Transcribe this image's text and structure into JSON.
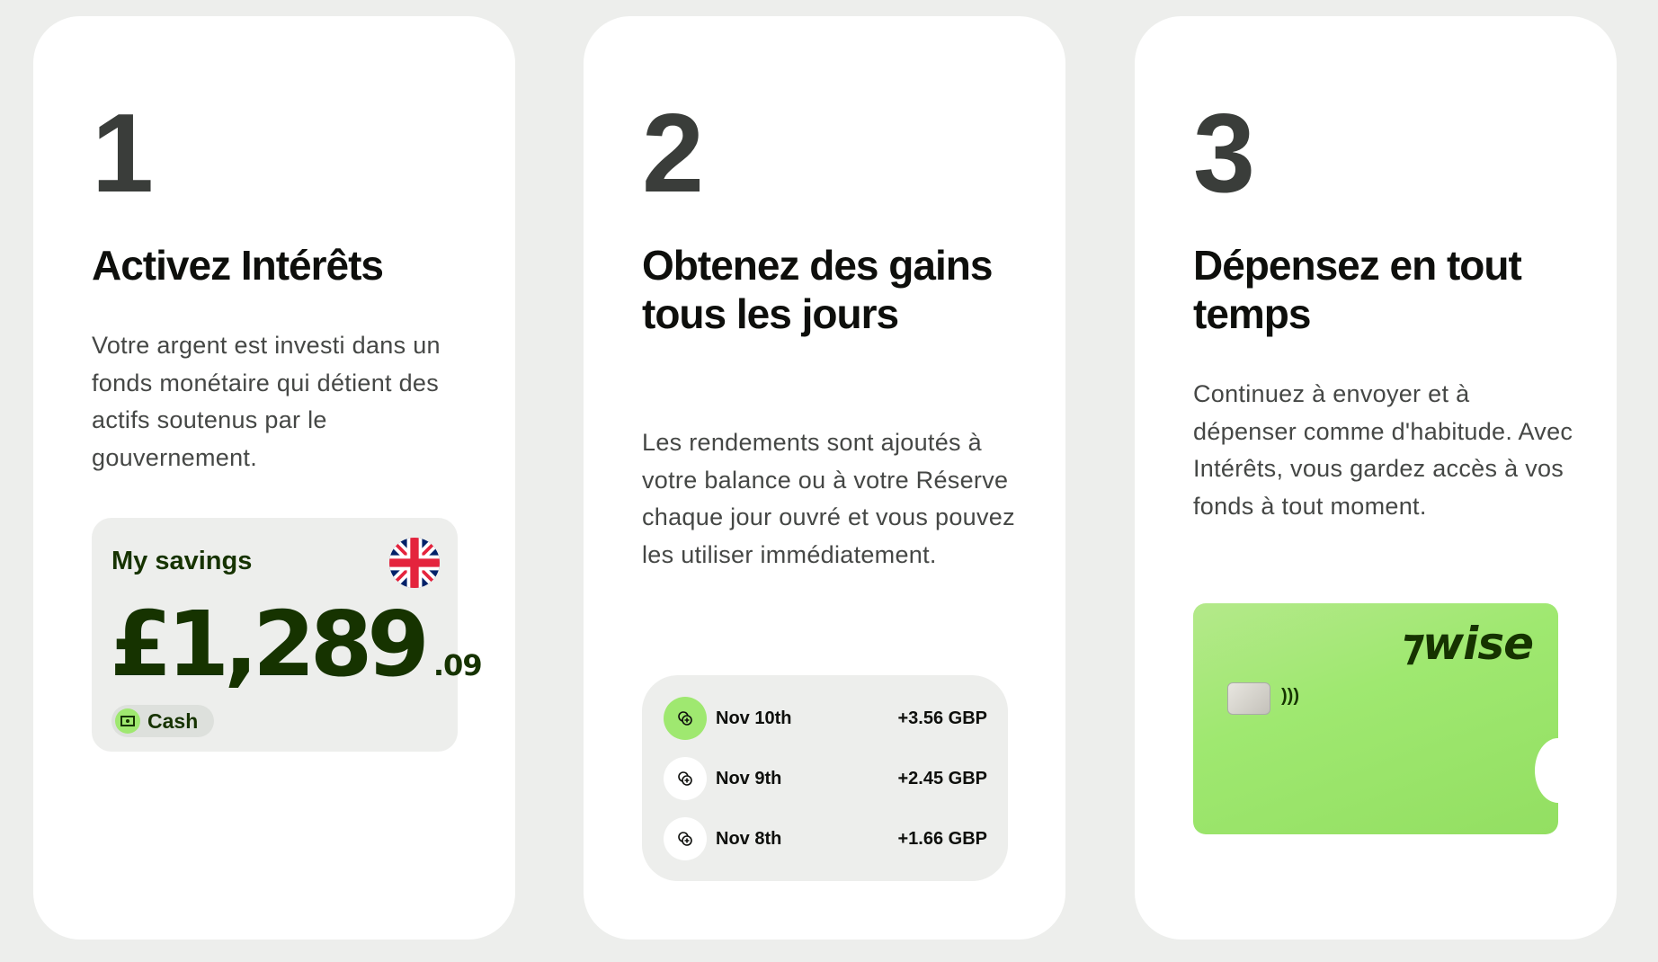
{
  "steps": [
    {
      "number": "1",
      "title": "Activez Intérêts",
      "description": "Votre argent est investi dans un fonds monétaire qui détient des actifs soutenus par le gouvernement."
    },
    {
      "number": "2",
      "title": "Obtenez des gains tous les jours",
      "description": "Les rendements sont ajoutés à votre balance ou à votre Réserve chaque jour ouvré et vous pouvez les utiliser immédiatement."
    },
    {
      "number": "3",
      "title": "Dépensez en tout temps",
      "description": "Continuez à envoyer et à dépenser comme d'habitude. Avec Intérêts, vous gardez accès à vos fonds à tout moment."
    }
  ],
  "savings": {
    "label": "My savings",
    "amount_main": "£1,289",
    "amount_cents": ".09",
    "chip": "Cash",
    "flag_icon": "uk-flag-icon"
  },
  "earnings": [
    {
      "date": "Nov 10th",
      "amount": "+3.56 GBP",
      "active": true
    },
    {
      "date": "Nov 9th",
      "amount": "+2.45 GBP",
      "active": false
    },
    {
      "date": "Nov 8th",
      "amount": "+1.66 GBP",
      "active": false
    }
  ],
  "card": {
    "brand": "wise",
    "color": "#9fe870"
  },
  "colors": {
    "accent": "#9fe870",
    "dark_green": "#163300",
    "background": "#edeeec"
  }
}
